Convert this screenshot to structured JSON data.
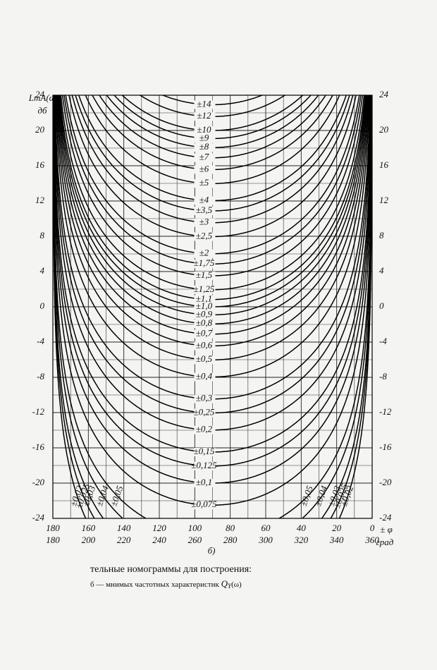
{
  "chart_data": {
    "type": "nomogram",
    "y_label": "LmA(ω)",
    "y_unit": "дб",
    "x_label": "± φ",
    "x_unit": "град",
    "panel": "б)",
    "ylim": [
      -24,
      24
    ],
    "yticks": [
      -24,
      -20,
      -16,
      -12,
      -8,
      -4,
      0,
      4,
      8,
      12,
      16,
      20,
      24
    ],
    "xlim": [
      180,
      360
    ],
    "xticks": [
      180,
      200,
      220,
      240,
      260,
      280,
      300,
      320,
      340,
      360
    ],
    "xticks_phi": [
      {
        "value": 180,
        "label": "180"
      },
      {
        "value": 200,
        "label": "160"
      },
      {
        "value": 220,
        "label": "140"
      },
      {
        "value": 240,
        "label": "120"
      },
      {
        "value": 260,
        "label": "100"
      },
      {
        "value": 280,
        "label": "80"
      },
      {
        "value": 300,
        "label": "60"
      },
      {
        "value": 320,
        "label": "40"
      },
      {
        "value": 340,
        "label": "20"
      },
      {
        "value": 360,
        "label": "0"
      }
    ],
    "grid": true,
    "curves": {
      "values": [
        14,
        12,
        10,
        9,
        8,
        7,
        6,
        5,
        4,
        3.5,
        3,
        2.5,
        2,
        1.75,
        1.5,
        1.25,
        1.1,
        1.0,
        0.9,
        0.8,
        0.7,
        0.6,
        0.5,
        0.4,
        0.3,
        0.25,
        0.2,
        0.15,
        0.125,
        0.1,
        0.075,
        0.05,
        0.04,
        0.03,
        0.025,
        0.02
      ],
      "value_labels": [
        "±14",
        "±12",
        "±10",
        "±9",
        "±8",
        "±7",
        "±6",
        "±5",
        "±4",
        "±3,5",
        "±3",
        "±2,5",
        "±2",
        "±1,75",
        "±1,5",
        "±1,25",
        "±1,1",
        "±1,0",
        "±0,9",
        "±0,8",
        "±0,7",
        "±0,6",
        "±0,5",
        "±0,4",
        "±0,3",
        "±0,25",
        "±0,2",
        "±0,15",
        "±0,125",
        "±0,1",
        "±0,075",
        "±0,05",
        "±0,04",
        "±0,03",
        "±0,025",
        "±0,02"
      ]
    }
  },
  "caption": {
    "line1": "тельные номограммы для построения:",
    "line2": "б — мнимых частотных характеристик",
    "symbol": "Q",
    "subscript": "Y",
    "arg": "(ω)"
  }
}
